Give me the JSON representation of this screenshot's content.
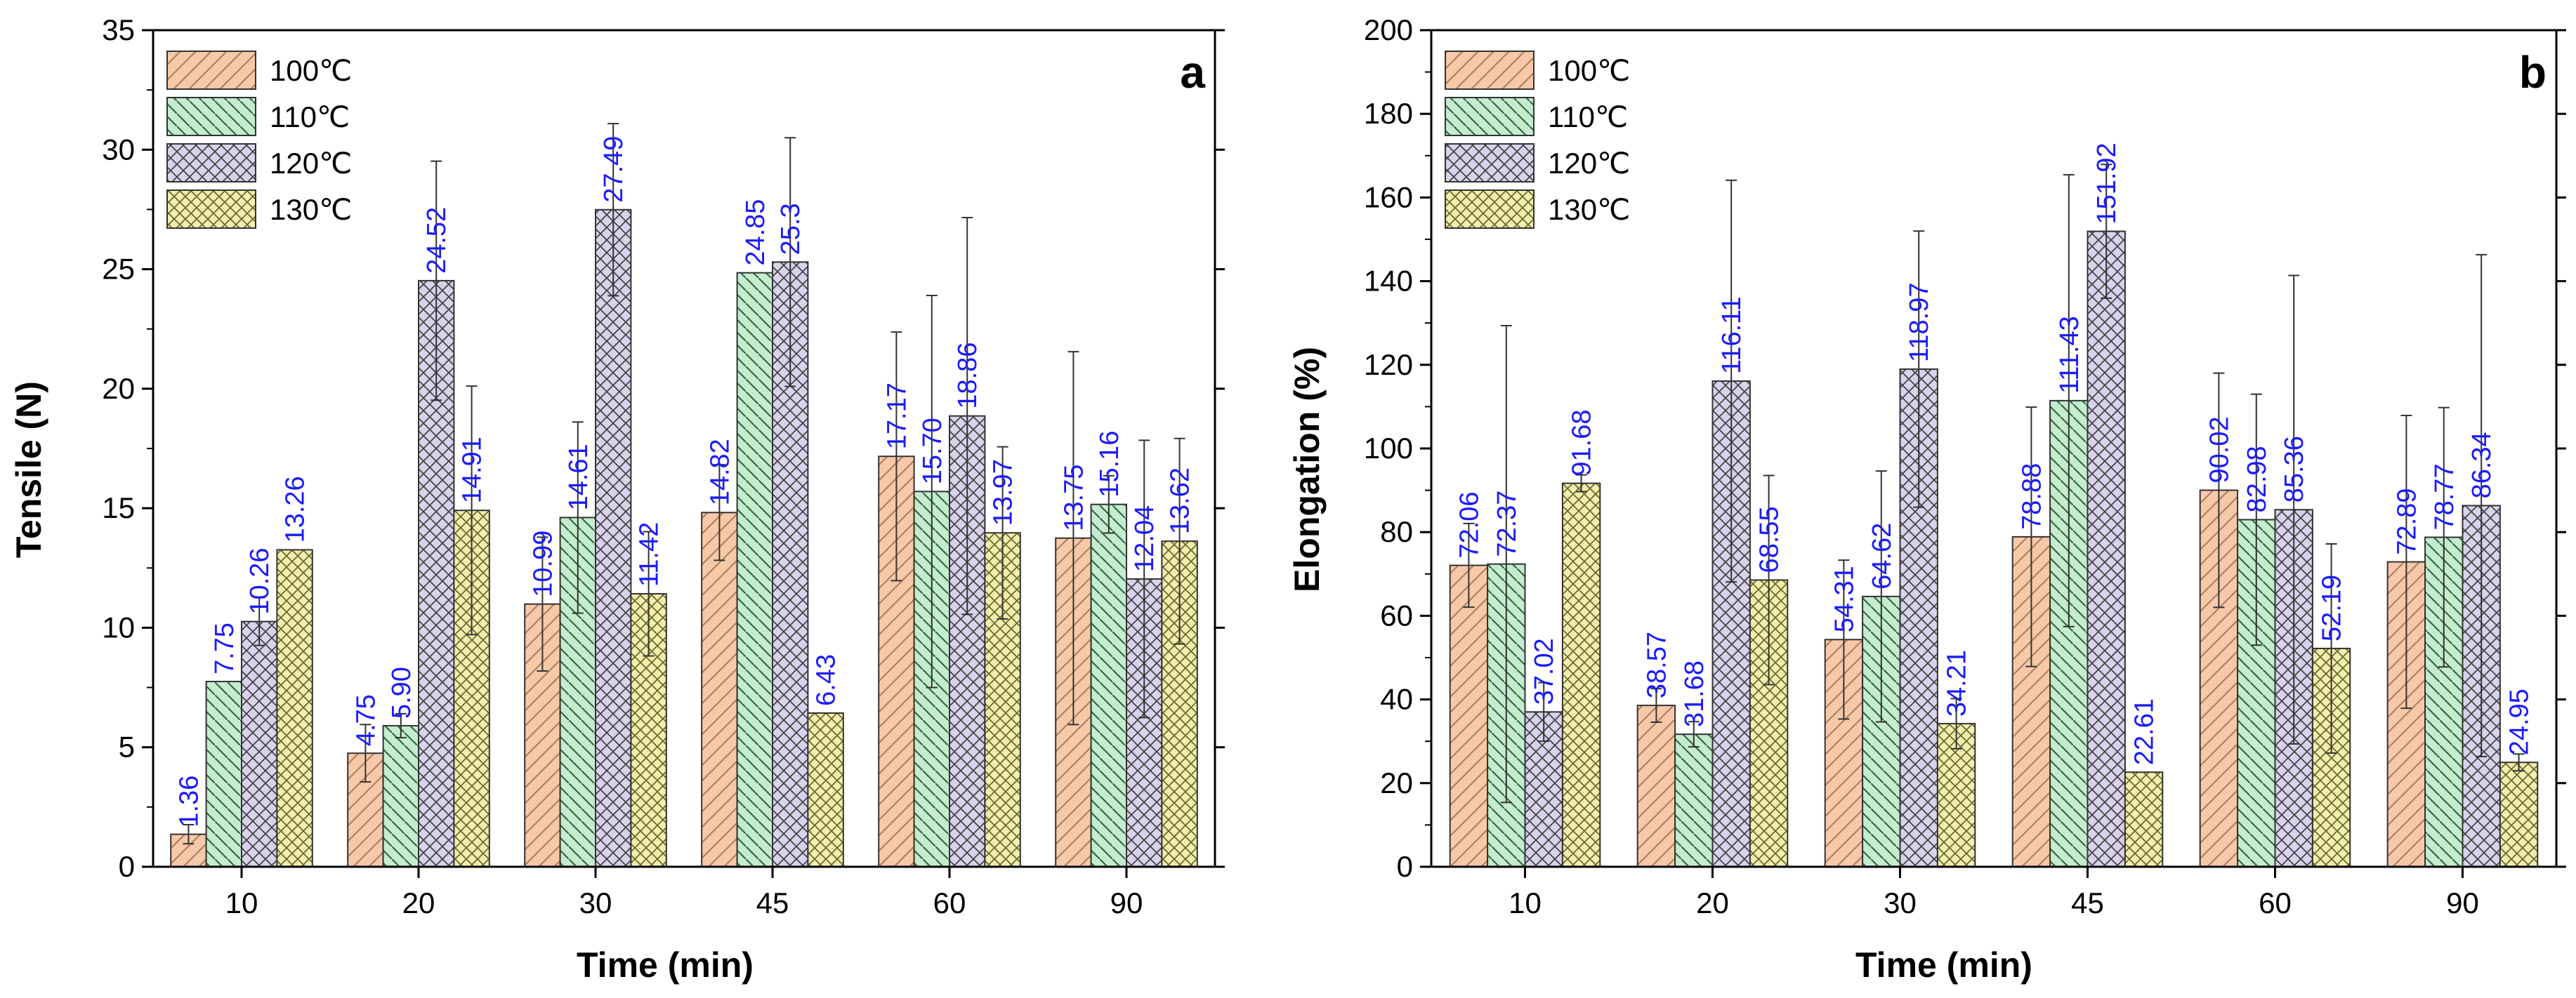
{
  "chart_data": [
    {
      "type": "bar",
      "panel": "a",
      "title": "",
      "xlabel": "Time (min)",
      "ylabel": "Tensile (N)",
      "ylim": [
        0,
        35
      ],
      "yticks": [
        0,
        5,
        10,
        15,
        20,
        25,
        30,
        35
      ],
      "categories": [
        "10",
        "20",
        "30",
        "45",
        "60",
        "90"
      ],
      "legend_position": "top-left",
      "series": [
        {
          "name": "100℃",
          "color": "#f7c9a8",
          "hatch": "fwd",
          "values": [
            1.36,
            4.75,
            10.99,
            14.82,
            17.17,
            13.75
          ],
          "labels": [
            "1.36",
            "4.75",
            "10.99",
            "14.82",
            "17.17",
            "13.75"
          ],
          "errors": [
            0.4,
            1.2,
            2.8,
            2.0,
            5.2,
            7.8
          ]
        },
        {
          "name": "110℃",
          "color": "#c6ecd0",
          "hatch": "back",
          "values": [
            7.75,
            5.9,
            14.61,
            24.85,
            15.7,
            15.16
          ],
          "labels": [
            "7.75",
            "5.90",
            "14.61",
            "24.85",
            "15.70",
            "15.16"
          ],
          "errors": [
            0,
            0.5,
            4.0,
            0,
            8.2,
            1.2
          ]
        },
        {
          "name": "120℃",
          "color": "#d9d2ec",
          "hatch": "cross",
          "values": [
            10.26,
            24.52,
            27.49,
            25.3,
            18.86,
            12.04
          ],
          "labels": [
            "10.26",
            "24.52",
            "27.49",
            "25.3",
            "18.86",
            "12.04"
          ],
          "errors": [
            1.0,
            5.0,
            3.6,
            5.2,
            8.3,
            5.8
          ]
        },
        {
          "name": "130℃",
          "color": "#f3edb0",
          "hatch": "cross",
          "values": [
            13.26,
            14.91,
            11.42,
            6.43,
            13.97,
            13.62
          ],
          "labels": [
            "13.26",
            "14.91",
            "11.42",
            "6.43",
            "13.97",
            "13.62"
          ],
          "errors": [
            0,
            5.2,
            2.6,
            0,
            3.6,
            4.3
          ]
        }
      ]
    },
    {
      "type": "bar",
      "panel": "b",
      "title": "",
      "xlabel": "Time (min)",
      "ylabel": "Elongation (%)",
      "ylim": [
        0,
        200
      ],
      "yticks": [
        0,
        20,
        40,
        60,
        80,
        100,
        120,
        140,
        160,
        180,
        200
      ],
      "categories": [
        "10",
        "20",
        "30",
        "45",
        "60",
        "90"
      ],
      "legend_position": "top-left",
      "series": [
        {
          "name": "100℃",
          "color": "#f7c9a8",
          "hatch": "fwd",
          "values": [
            72.06,
            38.57,
            54.31,
            78.88,
            90.02,
            72.89
          ],
          "labels": [
            "72.06",
            "38.57",
            "54.31",
            "78.88",
            "90.02",
            "72.89"
          ],
          "errors": [
            10,
            4,
            19,
            31,
            28,
            35
          ]
        },
        {
          "name": "110℃",
          "color": "#c6ecd0",
          "hatch": "back",
          "values": [
            72.37,
            31.68,
            64.62,
            111.43,
            82.98,
            78.77
          ],
          "labels": [
            "72.37",
            "31.68",
            "64.62",
            "111.43",
            "82.98",
            "78.77"
          ],
          "errors": [
            57,
            3,
            30,
            54,
            30,
            31
          ]
        },
        {
          "name": "120℃",
          "color": "#d9d2ec",
          "hatch": "cross",
          "values": [
            37.02,
            116.11,
            118.97,
            151.92,
            85.36,
            86.34
          ],
          "labels": [
            "37.02",
            "116.11",
            "118.97",
            "151.92",
            "85.36",
            "86.34"
          ],
          "errors": [
            7,
            48,
            33,
            16,
            56,
            60
          ]
        },
        {
          "name": "130℃",
          "color": "#f3edb0",
          "hatch": "cross",
          "values": [
            91.68,
            68.55,
            34.21,
            22.61,
            52.19,
            24.95
          ],
          "labels": [
            "91.68",
            "68.55",
            "34.21",
            "22.61",
            "52.19",
            "24.95"
          ],
          "errors": [
            2,
            25,
            6,
            0,
            25,
            2
          ]
        }
      ]
    }
  ]
}
